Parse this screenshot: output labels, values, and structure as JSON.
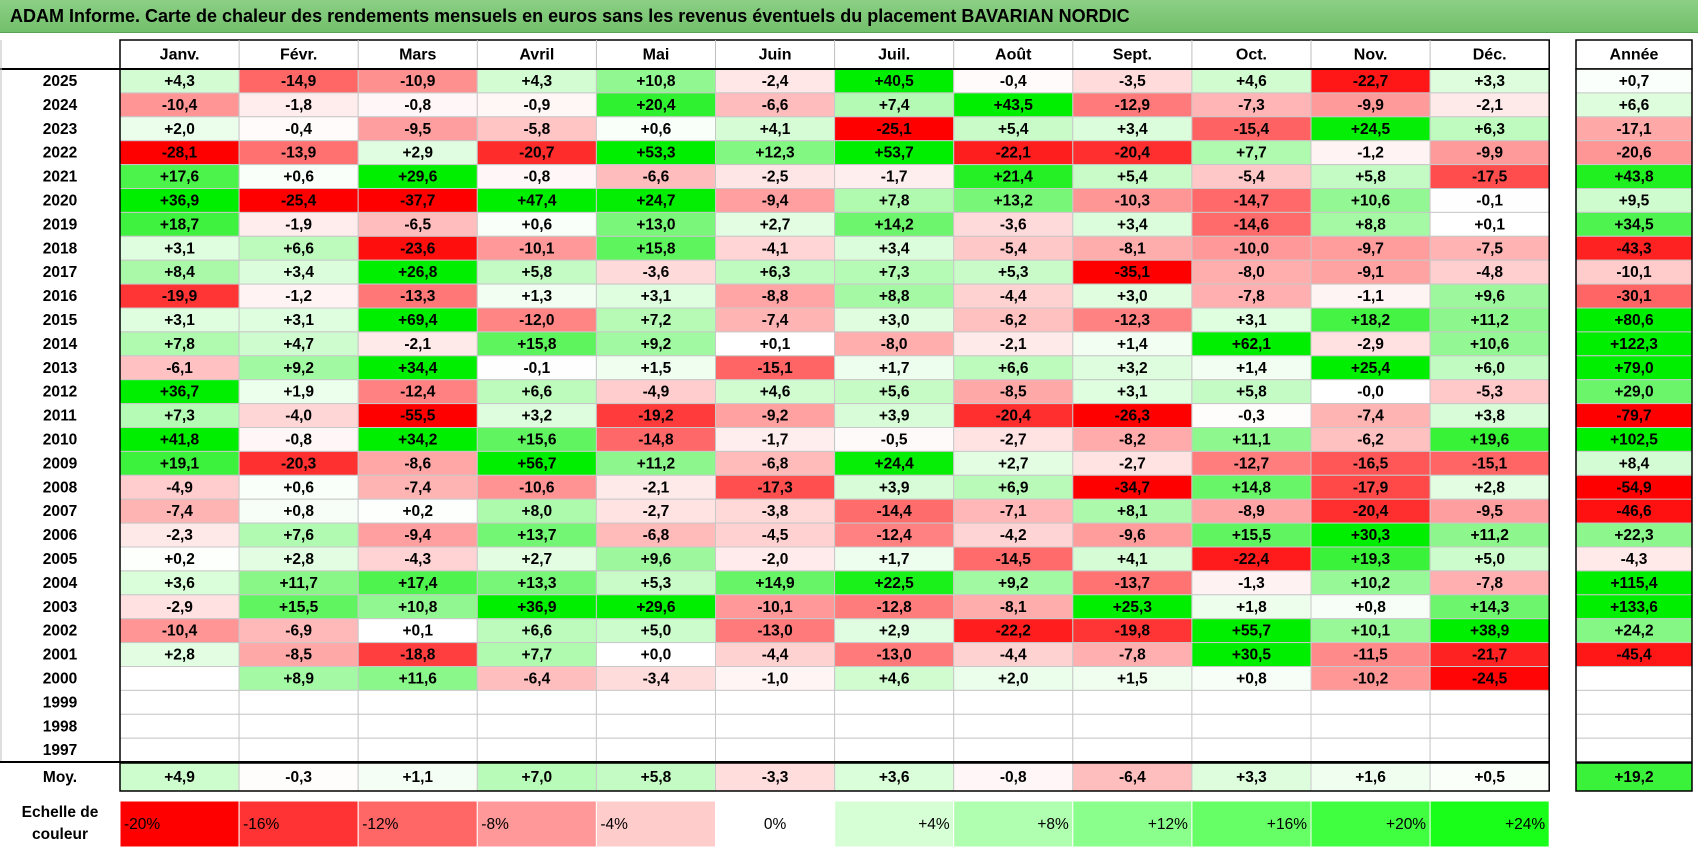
{
  "title": "ADAM Informe. Carte de chaleur des rendements mensuels en euros sans les revenus éventuels du placement BAVARIAN NORDIC",
  "chart_data": {
    "type": "heatmap",
    "title": "ADAM Informe. Carte de chaleur des rendements mensuels en euros sans les revenus éventuels du placement BAVARIAN NORDIC",
    "months": [
      "Janv.",
      "Févr.",
      "Mars",
      "Avril",
      "Mai",
      "Juin",
      "Juil.",
      "Août",
      "Sept.",
      "Oct.",
      "Nov.",
      "Déc."
    ],
    "year_header": "Année",
    "rows": [
      {
        "year": "2025",
        "values": [
          "+4,3",
          "-14,9",
          "-10,9",
          "+4,3",
          "+10,8",
          "-2,4",
          "+40,5",
          "-0,4",
          "-3,5",
          "+4,6",
          "-22,7",
          "+3,3"
        ],
        "annual": "+0,7"
      },
      {
        "year": "2024",
        "values": [
          "-10,4",
          "-1,8",
          "-0,8",
          "-0,9",
          "+20,4",
          "-6,6",
          "+7,4",
          "+43,5",
          "-12,9",
          "-7,3",
          "-9,9",
          "-2,1"
        ],
        "annual": "+6,6"
      },
      {
        "year": "2023",
        "values": [
          "+2,0",
          "-0,4",
          "-9,5",
          "-5,8",
          "+0,6",
          "+4,1",
          "-25,1",
          "+5,4",
          "+3,4",
          "-15,4",
          "+24,5",
          "+6,3"
        ],
        "annual": "-17,1"
      },
      {
        "year": "2022",
        "values": [
          "-28,1",
          "-13,9",
          "+2,9",
          "-20,7",
          "+53,3",
          "+12,3",
          "+53,7",
          "-22,1",
          "-20,4",
          "+7,7",
          "-1,2",
          "-9,9"
        ],
        "annual": "-20,6"
      },
      {
        "year": "2021",
        "values": [
          "+17,6",
          "+0,6",
          "+29,6",
          "-0,8",
          "-6,6",
          "-2,5",
          "-1,7",
          "+21,4",
          "+5,4",
          "-5,4",
          "+5,8",
          "-17,5"
        ],
        "annual": "+43,8"
      },
      {
        "year": "2020",
        "values": [
          "+36,9",
          "-25,4",
          "-37,7",
          "+47,4",
          "+24,7",
          "-9,4",
          "+7,8",
          "+13,2",
          "-10,3",
          "-14,7",
          "+10,6",
          "-0,1"
        ],
        "annual": "+9,5"
      },
      {
        "year": "2019",
        "values": [
          "+18,7",
          "-1,9",
          "-6,5",
          "+0,6",
          "+13,0",
          "+2,7",
          "+14,2",
          "-3,6",
          "+3,4",
          "-14,6",
          "+8,8",
          "+0,1"
        ],
        "annual": "+34,5"
      },
      {
        "year": "2018",
        "values": [
          "+3,1",
          "+6,6",
          "-23,6",
          "-10,1",
          "+15,8",
          "-4,1",
          "+3,4",
          "-5,4",
          "-8,1",
          "-10,0",
          "-9,7",
          "-7,5"
        ],
        "annual": "-43,3"
      },
      {
        "year": "2017",
        "values": [
          "+8,4",
          "+3,4",
          "+26,8",
          "+5,8",
          "-3,6",
          "+6,3",
          "+7,3",
          "+5,3",
          "-35,1",
          "-8,0",
          "-9,1",
          "-4,8"
        ],
        "annual": "-10,1"
      },
      {
        "year": "2016",
        "values": [
          "-19,9",
          "-1,2",
          "-13,3",
          "+1,3",
          "+3,1",
          "-8,8",
          "+8,8",
          "-4,4",
          "+3,0",
          "-7,8",
          "-1,1",
          "+9,6"
        ],
        "annual": "-30,1"
      },
      {
        "year": "2015",
        "values": [
          "+3,1",
          "+3,1",
          "+69,4",
          "-12,0",
          "+7,2",
          "-7,4",
          "+3,0",
          "-6,2",
          "-12,3",
          "+3,1",
          "+18,2",
          "+11,2"
        ],
        "annual": "+80,6"
      },
      {
        "year": "2014",
        "values": [
          "+7,8",
          "+4,7",
          "-2,1",
          "+15,8",
          "+9,2",
          "+0,1",
          "-8,0",
          "-2,1",
          "+1,4",
          "+62,1",
          "-2,9",
          "+10,6"
        ],
        "annual": "+122,3"
      },
      {
        "year": "2013",
        "values": [
          "-6,1",
          "+9,2",
          "+34,4",
          "-0,1",
          "+1,5",
          "-15,1",
          "+1,7",
          "+6,6",
          "+3,2",
          "+1,4",
          "+25,4",
          "+6,0"
        ],
        "annual": "+79,0"
      },
      {
        "year": "2012",
        "values": [
          "+36,7",
          "+1,9",
          "-12,4",
          "+6,6",
          "-4,9",
          "+4,6",
          "+5,6",
          "-8,5",
          "+3,1",
          "+5,8",
          "-0,0",
          "-5,3"
        ],
        "annual": "+29,0"
      },
      {
        "year": "2011",
        "values": [
          "+7,3",
          "-4,0",
          "-55,5",
          "+3,2",
          "-19,2",
          "-9,2",
          "+3,9",
          "-20,4",
          "-26,3",
          "-0,3",
          "-7,4",
          "+3,8"
        ],
        "annual": "-79,7"
      },
      {
        "year": "2010",
        "values": [
          "+41,8",
          "-0,8",
          "+34,2",
          "+15,6",
          "-14,8",
          "-1,7",
          "-0,5",
          "-2,7",
          "-8,2",
          "+11,1",
          "-6,2",
          "+19,6"
        ],
        "annual": "+102,5"
      },
      {
        "year": "2009",
        "values": [
          "+19,1",
          "-20,3",
          "-8,6",
          "+56,7",
          "+11,2",
          "-6,8",
          "+24,4",
          "+2,7",
          "-2,7",
          "-12,7",
          "-16,5",
          "-15,1"
        ],
        "annual": "+8,4"
      },
      {
        "year": "2008",
        "values": [
          "-4,9",
          "+0,6",
          "-7,4",
          "-10,6",
          "-2,1",
          "-17,3",
          "+3,9",
          "+6,9",
          "-34,7",
          "+14,8",
          "-17,9",
          "+2,8"
        ],
        "annual": "-54,9"
      },
      {
        "year": "2007",
        "values": [
          "-7,4",
          "+0,8",
          "+0,2",
          "+8,0",
          "-2,7",
          "-3,8",
          "-14,4",
          "-7,1",
          "+8,1",
          "-8,9",
          "-20,4",
          "-9,5"
        ],
        "annual": "-46,6"
      },
      {
        "year": "2006",
        "values": [
          "-2,3",
          "+7,6",
          "-9,4",
          "+13,7",
          "-6,8",
          "-4,5",
          "-12,4",
          "-4,2",
          "-9,6",
          "+15,5",
          "+30,3",
          "+11,2"
        ],
        "annual": "+22,3"
      },
      {
        "year": "2005",
        "values": [
          "+0,2",
          "+2,8",
          "-4,3",
          "+2,7",
          "+9,6",
          "-2,0",
          "+1,7",
          "-14,5",
          "+4,1",
          "-22,4",
          "+19,3",
          "+5,0"
        ],
        "annual": "-4,3"
      },
      {
        "year": "2004",
        "values": [
          "+3,6",
          "+11,7",
          "+17,4",
          "+13,3",
          "+5,3",
          "+14,9",
          "+22,5",
          "+9,2",
          "-13,7",
          "-1,3",
          "+10,2",
          "-7,8"
        ],
        "annual": "+115,4"
      },
      {
        "year": "2003",
        "values": [
          "-2,9",
          "+15,5",
          "+10,8",
          "+36,9",
          "+29,6",
          "-10,1",
          "-12,8",
          "-8,1",
          "+25,3",
          "+1,8",
          "+0,8",
          "+14,3"
        ],
        "annual": "+133,6"
      },
      {
        "year": "2002",
        "values": [
          "-10,4",
          "-6,9",
          "+0,1",
          "+6,6",
          "+5,0",
          "-13,0",
          "+2,9",
          "-22,2",
          "-19,8",
          "+55,7",
          "+10,1",
          "+38,9"
        ],
        "annual": "+24,2"
      },
      {
        "year": "2001",
        "values": [
          "+2,8",
          "-8,5",
          "-18,8",
          "+7,7",
          "+0,0",
          "-4,4",
          "-13,0",
          "-4,4",
          "-7,8",
          "+30,5",
          "-11,5",
          "-21,7"
        ],
        "annual": "-45,4"
      },
      {
        "year": "2000",
        "values": [
          "",
          "+8,9",
          "+11,6",
          "-6,4",
          "-3,4",
          "-1,0",
          "+4,6",
          "+2,0",
          "+1,5",
          "+0,8",
          "-10,2",
          "-24,5"
        ],
        "annual": ""
      },
      {
        "year": "1999",
        "values": [
          "",
          "",
          "",
          "",
          "",
          "",
          "",
          "",
          "",
          "",
          "",
          ""
        ],
        "annual": ""
      },
      {
        "year": "1998",
        "values": [
          "",
          "",
          "",
          "",
          "",
          "",
          "",
          "",
          "",
          "",
          "",
          ""
        ],
        "annual": ""
      },
      {
        "year": "1997",
        "values": [
          "",
          "",
          "",
          "",
          "",
          "",
          "",
          "",
          "",
          "",
          "",
          ""
        ],
        "annual": ""
      }
    ],
    "average": {
      "label": "Moy.",
      "values": [
        "+4,9",
        "-0,3",
        "+1,1",
        "+7,0",
        "+5,8",
        "-3,3",
        "+3,6",
        "-0,8",
        "-6,4",
        "+3,3",
        "+1,6",
        "+0,5"
      ],
      "annual": "+19,2"
    },
    "legend": {
      "label_line1": "Echelle de",
      "label_line2": "couleur",
      "steps": [
        {
          "label": "-20%",
          "value": -20,
          "color": "#ff0000"
        },
        {
          "label": "-16%",
          "value": -16,
          "color": "#ff3333"
        },
        {
          "label": "-12%",
          "value": -12,
          "color": "#ff6666"
        },
        {
          "label": "-8%",
          "value": -8,
          "color": "#ff9999"
        },
        {
          "label": "-4%",
          "value": -4,
          "color": "#ffcccc"
        },
        {
          "label": "0%",
          "value": 0,
          "color": "#ffffff"
        },
        {
          "label": "+4%",
          "value": 4,
          "color": "#d6ffd6"
        },
        {
          "label": "+8%",
          "value": 8,
          "color": "#b0ffb0"
        },
        {
          "label": "+12%",
          "value": 12,
          "color": "#8bff8b"
        },
        {
          "label": "+16%",
          "value": 16,
          "color": "#66ff66"
        },
        {
          "label": "+20%",
          "value": 20,
          "color": "#40ff40"
        },
        {
          "label": "+24%",
          "value": 24,
          "color": "#1aff1a"
        }
      ]
    },
    "colors": {
      "negative_max": "#ff0000",
      "positive_max": "#00ee00",
      "neutral": "#ffffff",
      "title_bar": "#7cc675",
      "grid": "#bfbfbf"
    }
  }
}
